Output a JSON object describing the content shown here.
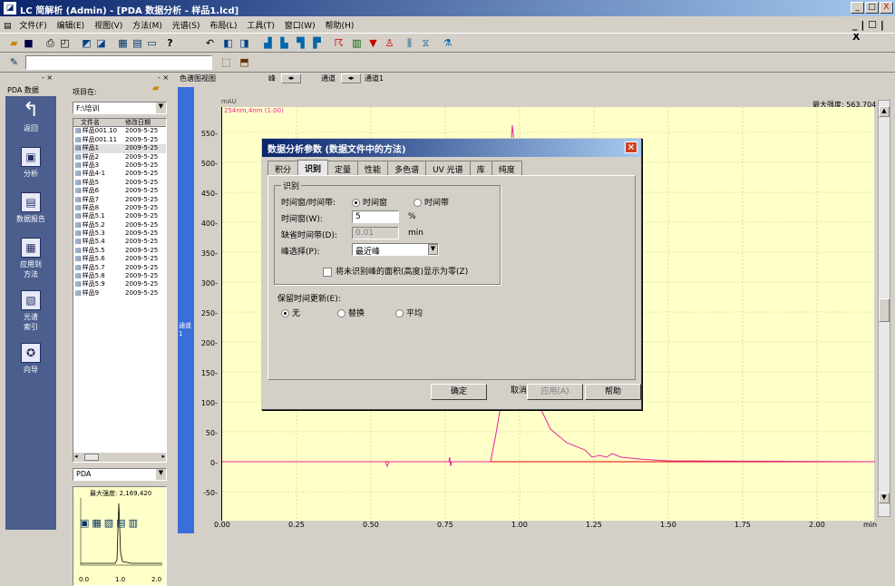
{
  "window": {
    "title": "LC 简解析 (Admin) - [PDA 数据分析 - 样品1.lcd]",
    "minimize": "_",
    "maximize": "□",
    "close": "X"
  },
  "menu": [
    "文件(F)",
    "编辑(E)",
    "视图(V)",
    "方法(M)",
    "光谱(S)",
    "布局(L)",
    "工具(T)",
    "窗口(W)",
    "帮助(H)"
  ],
  "menu_right": "_ | ☐ | X",
  "nav": {
    "header": "PDA 数据",
    "items": [
      {
        "label": "返回",
        "icon": "back-arrow-icon",
        "glyph": "↰"
      },
      {
        "label": "分析",
        "icon": "analysis-icon",
        "glyph": "▣"
      },
      {
        "label": "数据报告",
        "icon": "report-icon",
        "glyph": "▤"
      },
      {
        "label": "应用到方法",
        "icon": "apply-method-icon",
        "glyph": "▦"
      },
      {
        "label": "光谱索引",
        "icon": "spectrum-index-icon",
        "glyph": "▧"
      },
      {
        "label": "向导",
        "icon": "wizard-icon",
        "glyph": "✪"
      }
    ]
  },
  "project": {
    "label": "项目在:",
    "path": "F:\\培训",
    "columns": [
      "文件名",
      "修改日期"
    ],
    "files": [
      {
        "name": "样品001.10",
        "date": "2009-5-25"
      },
      {
        "name": "样品001.11",
        "date": "2009-5-25"
      },
      {
        "name": "样品1",
        "date": "2009-5-25"
      },
      {
        "name": "样品2",
        "date": "2009-5-25"
      },
      {
        "name": "样品3",
        "date": "2009-5-25"
      },
      {
        "name": "样品4-1",
        "date": "2009-5-25"
      },
      {
        "name": "样品5",
        "date": "2009-5-25"
      },
      {
        "name": "样品6",
        "date": "2009-5-25"
      },
      {
        "name": "样品7",
        "date": "2009-5-25"
      },
      {
        "name": "样品8",
        "date": "2009-5-25"
      },
      {
        "name": "样品5.1",
        "date": "2009-5-25"
      },
      {
        "name": "样品5.2",
        "date": "2009-5-25"
      },
      {
        "name": "样品5.3",
        "date": "2009-5-25"
      },
      {
        "name": "样品5.4",
        "date": "2009-5-25"
      },
      {
        "name": "样品5.5",
        "date": "2009-5-25"
      },
      {
        "name": "样品5.6",
        "date": "2009-5-25"
      },
      {
        "name": "样品5.7",
        "date": "2009-5-25"
      },
      {
        "name": "样品5.8",
        "date": "2009-5-25"
      },
      {
        "name": "样品5.9",
        "date": "2009-5-25"
      },
      {
        "name": "样品9",
        "date": "2009-5-25"
      }
    ],
    "detector": "PDA",
    "mini_max": "最大强度: 2,169,420",
    "mini_x": [
      "0.0",
      "1.0",
      "2.0"
    ]
  },
  "chart": {
    "window_title": "色谱图视图",
    "peak_label": "峰",
    "channel_label": "通道",
    "channel_value": "通道1",
    "unit": "mAU",
    "trace_label": "254nm,4nm (1.00)",
    "max_intensity": "最大强度: 563,704",
    "side_label": "通道1",
    "yticks": [
      "550-",
      "500-",
      "450-",
      "400-",
      "350-",
      "300-",
      "250-",
      "200-",
      "150-",
      "100-",
      "50-",
      "0-",
      "-50-"
    ],
    "xticks": [
      "0.00",
      "0.25",
      "0.50",
      "0.75",
      "1.00",
      "1.25",
      "1.50",
      "1.75",
      "2.00"
    ],
    "xunit": "min",
    "line_color": "#e8289c"
  },
  "dialog": {
    "title": "数据分析参数 (数据文件中的方法)",
    "tabs": [
      "积分",
      "识别",
      "定量",
      "性能",
      "多色谱",
      "UV 光谱",
      "库",
      "纯度"
    ],
    "selected_tab": "识别",
    "group_label": "识别",
    "time_label": "时间窗/时间带:",
    "time_opt1": "时间窗",
    "time_opt2": "时间带",
    "window_label": "时间窗(W):",
    "window_value": "5",
    "window_unit": "%",
    "default_band_label": "缺省时间带(D):",
    "default_band_value": "0.01",
    "default_band_unit": "min",
    "peak_select_label": "峰选择(P):",
    "peak_select_value": "最近峰",
    "checkbox_label": "将未识别峰的面积(高度)显示为零(Z)",
    "retention_label": "保留时间更新(E):",
    "ret_opt1": "无",
    "ret_opt2": "替换",
    "ret_opt3": "平均",
    "ok": "确定",
    "cancel": "取消",
    "apply": "应用(A)",
    "help": "帮助"
  }
}
